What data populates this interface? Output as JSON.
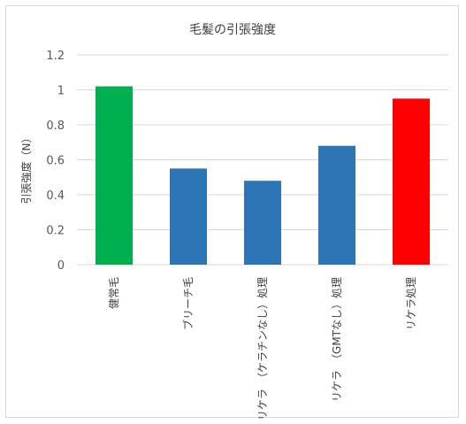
{
  "chart_data": {
    "type": "bar",
    "title": "毛髪の引張強度",
    "xlabel": "",
    "ylabel": "引張強度（N）",
    "categories": [
      "健常毛",
      "ブリーチ毛",
      "リケラ　（ケラチンなし）処理",
      "リケラ　（GMTなし）処理",
      "リケラ処理"
    ],
    "values": [
      1.02,
      0.55,
      0.48,
      0.68,
      0.95
    ],
    "bar_colors": [
      "#00b050",
      "#2e75b6",
      "#2e75b6",
      "#2e75b6",
      "#ff0000"
    ],
    "ylim": [
      0,
      1.2
    ],
    "yticks": [
      0,
      0.2,
      0.4,
      0.6,
      0.8,
      1,
      1.2
    ],
    "ytick_labels": [
      "0",
      "0.2",
      "0.4",
      "0.6",
      "0.8",
      "1",
      "1.2"
    ],
    "grid": true,
    "legend": "none"
  }
}
